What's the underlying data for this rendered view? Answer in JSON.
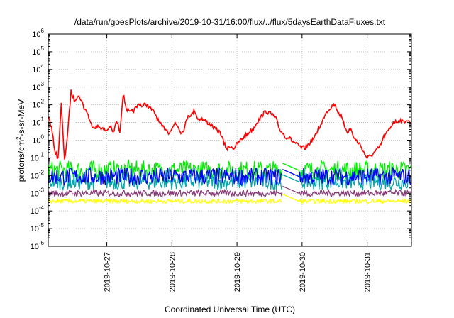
{
  "chart_data": {
    "type": "line",
    "title": "/data/run/goesPlots/archive/2019-10-31/16:00/flux/../flux/5daysEarthDataFluxes.txt",
    "xlabel": "Coordinated Universal Time (UTC)",
    "ylabel": "protons/cm²-s-sr-MeV",
    "ylabel_parts": {
      "pre": "protons/cm",
      "sup": "2",
      "post": "-s-sr-MeV"
    },
    "yscale": "log",
    "ylim_exp": [
      -6,
      6
    ],
    "ytick_exponents": [
      -6,
      -5,
      -4,
      -3,
      -2,
      -1,
      0,
      1,
      2,
      3,
      4,
      5,
      6
    ],
    "ytick_base": "10",
    "xlim_days": [
      26.1,
      31.68
    ],
    "xticks": [
      {
        "day": 27,
        "label": "2019-10-27"
      },
      {
        "day": 28,
        "label": "2019-10-28"
      },
      {
        "day": 29,
        "label": "2019-10-29"
      },
      {
        "day": 30,
        "label": "2019-10-30"
      },
      {
        "day": 31,
        "label": "2019-10-31"
      }
    ],
    "grid": true,
    "colors": {
      "red": "#ff0000",
      "green": "#00ee00",
      "cyan": "#00a8a8",
      "blue": "#0000ff",
      "purple": "#8a3c7a",
      "yellow": "#ffff00"
    },
    "series": [
      {
        "color": "red",
        "x": [
          26.1,
          26.15,
          26.2,
          26.25,
          26.3,
          26.35,
          26.4,
          26.45,
          26.5,
          26.55,
          26.6,
          26.65,
          26.7,
          26.75,
          26.8,
          26.85,
          26.9,
          26.95,
          27.0,
          27.05,
          27.1,
          27.15,
          27.2,
          27.25,
          27.3,
          27.35,
          27.4,
          27.45,
          27.5,
          27.55,
          27.6,
          27.65,
          27.7,
          27.75,
          27.8,
          27.85,
          27.9,
          27.95,
          28.0,
          28.05,
          28.1,
          28.15,
          28.2,
          28.25,
          28.3,
          28.35,
          28.4,
          28.45,
          28.5,
          28.55,
          28.6,
          28.65,
          28.7,
          28.75,
          28.8,
          28.85,
          28.9,
          28.95,
          29.0,
          29.05,
          29.1,
          29.15,
          29.2,
          29.25,
          29.3,
          29.35,
          29.4,
          29.45,
          29.5,
          29.55,
          29.6,
          29.65,
          29.7,
          29.75,
          29.8,
          29.85,
          29.9,
          29.95,
          30.0,
          30.05,
          30.1,
          30.15,
          30.2,
          30.25,
          30.3,
          30.35,
          30.4,
          30.45,
          30.5,
          30.55,
          30.6,
          30.65,
          30.7,
          30.75,
          30.8,
          30.85,
          30.9,
          30.95,
          31.0,
          31.05,
          31.1,
          31.15,
          31.2,
          31.25,
          31.3,
          31.35,
          31.4,
          31.45,
          31.5,
          31.55,
          31.6,
          31.68
        ],
        "log10y": [
          1.5,
          0.6,
          -0.5,
          -1.0,
          2.0,
          -1.2,
          0.5,
          2.7,
          2.2,
          2.5,
          2.3,
          1.8,
          1.5,
          1.0,
          0.8,
          0.7,
          0.7,
          0.7,
          0.5,
          0.8,
          0.3,
          1.0,
          0.6,
          2.6,
          1.7,
          1.5,
          1.6,
          1.8,
          2.0,
          1.8,
          2.1,
          1.9,
          1.6,
          1.5,
          1.1,
          0.8,
          0.7,
          0.5,
          0.5,
          1.0,
          0.7,
          0.3,
          0.9,
          1.5,
          1.4,
          1.7,
          1.2,
          1.3,
          1.0,
          1.1,
          0.9,
          0.7,
          0.5,
          0.3,
          -0.2,
          -0.4,
          -0.3,
          -0.4,
          -0.2,
          0.0,
          0.2,
          0.3,
          0.5,
          0.7,
          0.9,
          1.2,
          1.4,
          1.6,
          1.5,
          1.4,
          1.2,
          0.6,
          0.3,
          0.2,
          0.1,
          0.0,
          -0.2,
          -0.3,
          -0.4,
          -0.4,
          -0.3,
          -0.1,
          0.3,
          0.6,
          1.0,
          1.5,
          1.8,
          2.0,
          1.9,
          1.7,
          1.3,
          0.9,
          0.5,
          0.6,
          0.2,
          -0.2,
          -0.4,
          -0.8,
          -1.1,
          -1.0,
          -0.8,
          -0.5,
          -0.2,
          0.2,
          0.5,
          0.8,
          1.0,
          1.1,
          1.1,
          1.0,
          1.1,
          1.0
        ]
      },
      {
        "color": "green",
        "x_range": [
          26.1,
          31.68
        ],
        "log10y_base": -1.7,
        "log10y_spread": 0.55,
        "gap": [
          29.7,
          29.95
        ]
      },
      {
        "color": "cyan",
        "x_range": [
          26.1,
          31.68
        ],
        "log10y_base": -2.35,
        "log10y_spread": 0.45,
        "gap": [
          29.7,
          29.95
        ]
      },
      {
        "color": "blue",
        "x_range": [
          26.1,
          31.68
        ],
        "log10y_base": -2.05,
        "log10y_spread": 0.5,
        "gap": [
          29.7,
          29.95
        ]
      },
      {
        "color": "purple",
        "x_range": [
          26.1,
          31.68
        ],
        "log10y_base": -3.0,
        "log10y_spread": 0.18,
        "gap": [
          29.7,
          29.95
        ]
      },
      {
        "color": "yellow",
        "x_range": [
          26.1,
          31.68
        ],
        "log10y_base": -3.45,
        "log10y_spread": 0.12,
        "gap": [
          29.7,
          29.95
        ]
      }
    ]
  }
}
